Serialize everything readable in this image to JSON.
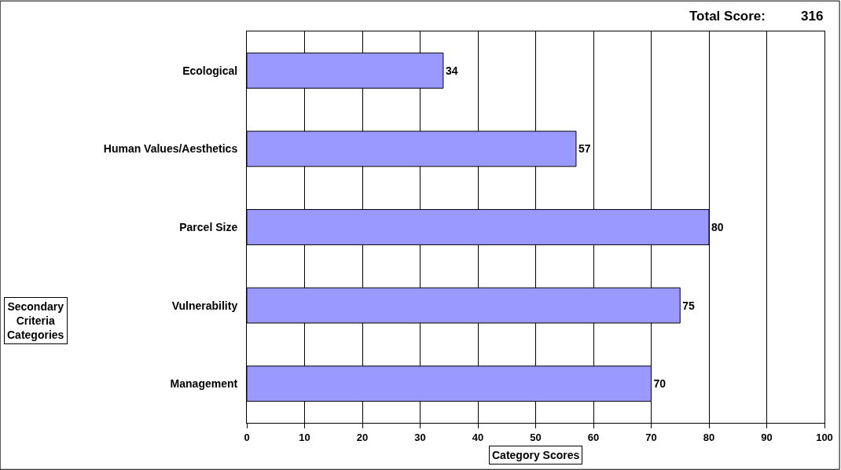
{
  "chart_data": {
    "type": "bar",
    "orientation": "horizontal",
    "categories": [
      "Ecological",
      "Human Values/Aesthetics",
      "Parcel Size",
      "Vulnerability",
      "Management"
    ],
    "values": [
      34,
      57,
      80,
      75,
      70
    ],
    "color": "#9999ff",
    "data_labels": true,
    "xlim": [
      0,
      100
    ],
    "xticks": [
      0,
      10,
      20,
      30,
      40,
      50,
      60,
      70,
      80,
      90,
      100
    ],
    "grid": "x",
    "legend": false,
    "xlabel": "Category Scores",
    "ylabel": "Secondary Criteria Categories",
    "annotations": [
      "Total Score:",
      "316"
    ]
  }
}
